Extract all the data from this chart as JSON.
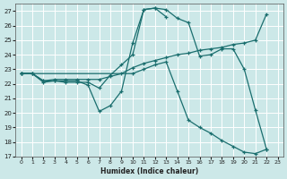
{
  "xlabel": "Humidex (Indice chaleur)",
  "bg_color": "#cce8e8",
  "grid_color": "#b0d8d8",
  "line_color": "#1a6e6e",
  "xlim": [
    -0.5,
    23.5
  ],
  "ylim": [
    17,
    27.5
  ],
  "yticks": [
    17,
    18,
    19,
    20,
    21,
    22,
    23,
    24,
    25,
    26,
    27
  ],
  "xticks": [
    0,
    1,
    2,
    3,
    4,
    5,
    6,
    7,
    8,
    9,
    10,
    11,
    12,
    13,
    14,
    15,
    16,
    17,
    18,
    19,
    20,
    21,
    22,
    23
  ],
  "lines": [
    {
      "x": [
        0,
        1,
        2,
        3,
        4,
        5,
        6,
        7,
        8,
        9,
        10,
        11,
        12,
        13,
        14,
        15,
        16,
        17,
        18,
        19,
        20,
        21,
        22
      ],
      "y": [
        22.7,
        22.7,
        22.1,
        22.2,
        22.1,
        22.1,
        22.1,
        21.7,
        22.6,
        23.3,
        24.0,
        27.1,
        27.2,
        27.1,
        26.5,
        26.2,
        23.9,
        24.0,
        24.4,
        24.4,
        23.0,
        20.2,
        17.5
      ]
    },
    {
      "x": [
        0,
        1,
        2,
        3,
        4,
        5,
        6,
        7,
        8,
        9,
        10,
        11,
        12,
        13
      ],
      "y": [
        22.7,
        22.7,
        22.2,
        22.2,
        22.2,
        22.2,
        21.9,
        20.1,
        20.5,
        21.5,
        24.8,
        27.1,
        27.2,
        26.6
      ]
    },
    {
      "x": [
        0,
        1,
        2,
        3,
        4,
        5,
        6,
        7,
        8,
        9,
        10,
        11,
        12,
        13,
        14,
        15,
        16,
        17,
        18,
        19,
        20,
        21,
        22
      ],
      "y": [
        22.7,
        22.7,
        22.2,
        22.3,
        22.3,
        22.3,
        22.3,
        22.3,
        22.5,
        22.7,
        23.1,
        23.4,
        23.6,
        23.8,
        24.0,
        24.1,
        24.3,
        24.4,
        24.5,
        24.7,
        24.8,
        25.0,
        26.8
      ]
    },
    {
      "x": [
        0,
        10,
        11,
        12,
        13,
        14,
        15,
        16,
        17,
        18,
        19,
        20,
        21,
        22
      ],
      "y": [
        22.7,
        22.7,
        23.0,
        23.3,
        23.5,
        21.5,
        19.5,
        19.0,
        18.6,
        18.1,
        17.7,
        17.3,
        17.2,
        17.5
      ]
    }
  ]
}
